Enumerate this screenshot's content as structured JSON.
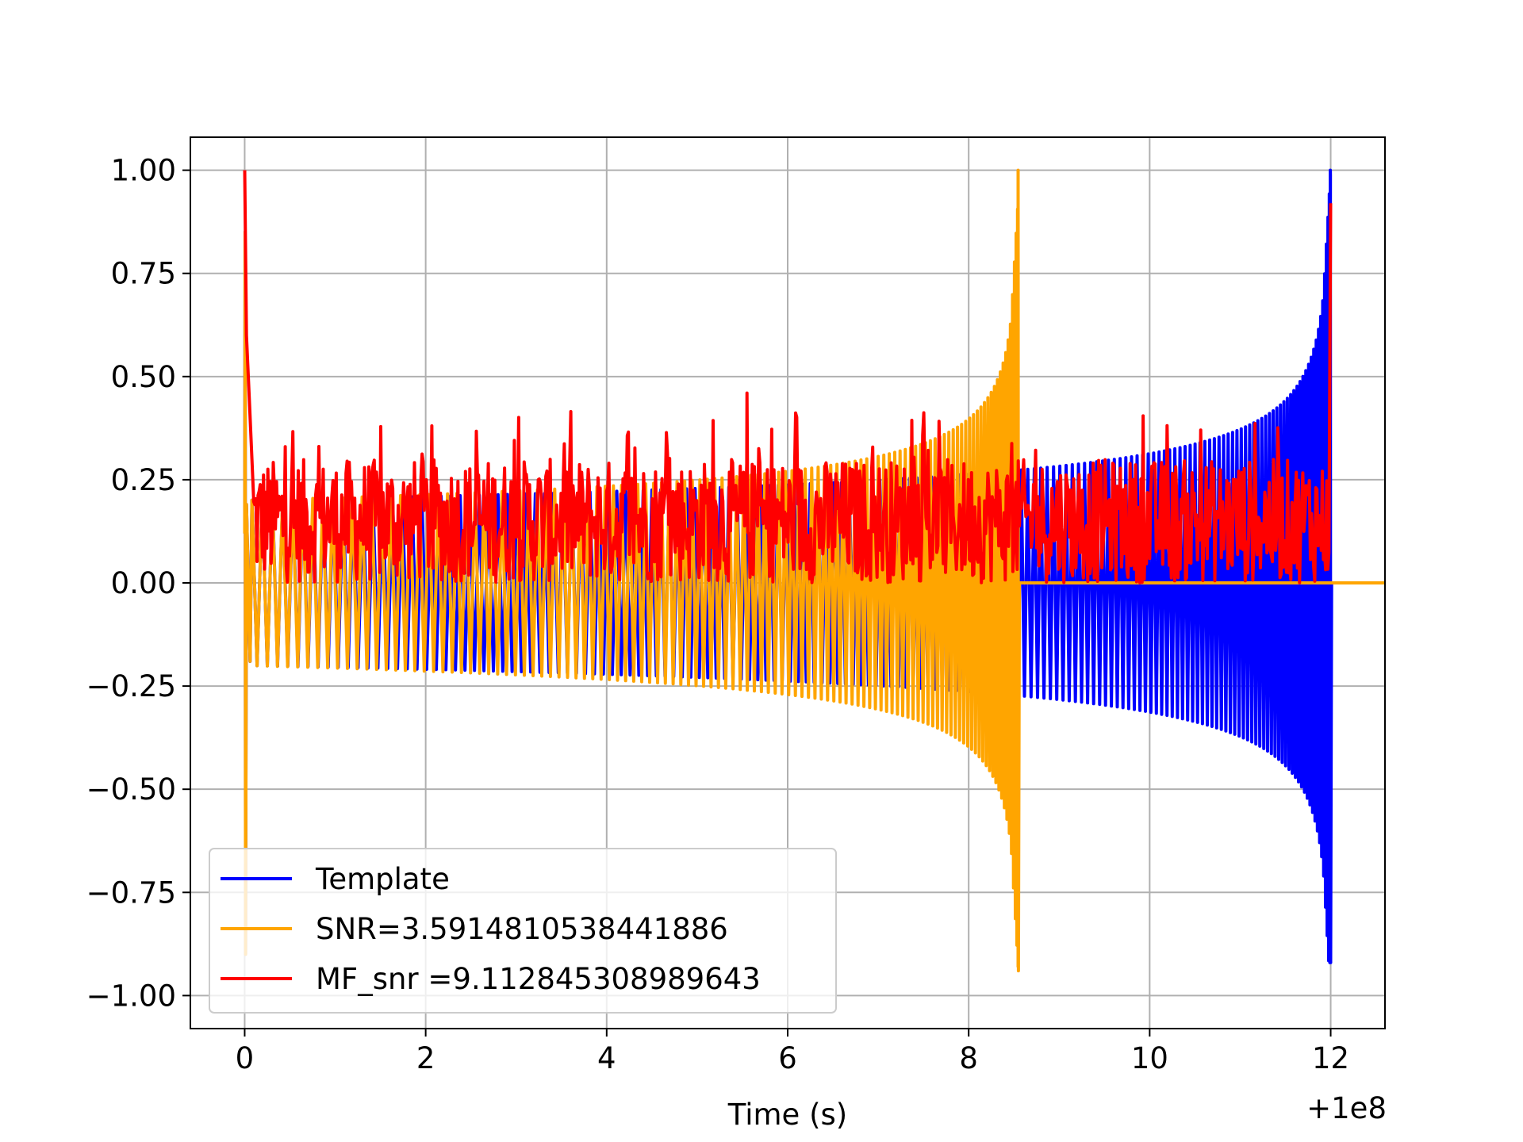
{
  "chart_data": {
    "type": "line",
    "title": "",
    "xlabel": "Time (s)",
    "ylabel": "",
    "x_offset_label": "+1e8",
    "xlim": [
      -0.6,
      12.6
    ],
    "ylim": [
      -1.08,
      1.08
    ],
    "grid": true,
    "xticks": [
      0,
      2,
      4,
      6,
      8,
      10,
      12
    ],
    "xtick_labels": [
      "0",
      "2",
      "4",
      "6",
      "8",
      "10",
      "12"
    ],
    "yticks": [
      1.0,
      0.75,
      0.5,
      0.25,
      0.0,
      -0.25,
      -0.5,
      -0.75,
      -1.0
    ],
    "ytick_labels": [
      "1.00",
      "0.75",
      "0.50",
      "0.25",
      "0.00",
      "−0.25",
      "−0.50",
      "−0.75",
      "−1.00"
    ],
    "legend_position": "lower-left",
    "series": [
      {
        "name": "Template",
        "color": "#0000ff",
        "kind": "chirp",
        "start": 0.0,
        "merger": 12.0,
        "peak_positive": 1.0,
        "peak_negative": -0.92,
        "baseline_amplitude": 0.2
      },
      {
        "name": "SNR=3.5914810538441886",
        "color": "#ffa500",
        "kind": "chirp",
        "start": 0.0,
        "merger": 8.55,
        "peak_positive": 1.0,
        "peak_negative": -0.94,
        "baseline_amplitude": 0.2
      },
      {
        "name": "MF_snr =9.112845308989643",
        "color": "#ff0000",
        "kind": "noise",
        "start": 0.0,
        "end": 12.0,
        "peaks": [
          {
            "x": 0.0,
            "y": 1.0
          },
          {
            "x": 5.55,
            "y": 0.46
          },
          {
            "x": 12.0,
            "y": 0.92
          }
        ],
        "typical_min": 0.0,
        "typical_max": 0.3
      }
    ]
  }
}
